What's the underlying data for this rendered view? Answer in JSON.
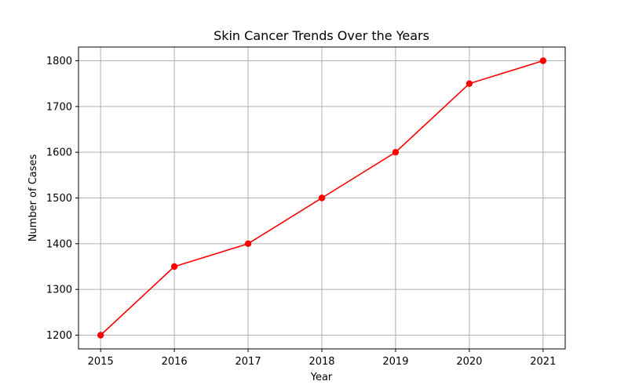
{
  "chart_data": {
    "type": "line",
    "title": "Skin Cancer Trends Over the Years",
    "xlabel": "Year",
    "ylabel": "Number of Cases",
    "x": [
      2015,
      2016,
      2017,
      2018,
      2019,
      2020,
      2021
    ],
    "series": [
      {
        "values": [
          1200,
          1350,
          1400,
          1500,
          1600,
          1750,
          1800
        ],
        "color": "#ff0000",
        "marker": "circle"
      }
    ],
    "xlim": [
      2014.7,
      2021.3
    ],
    "ylim": [
      1170,
      1830
    ],
    "x_ticks": [
      2015,
      2016,
      2017,
      2018,
      2019,
      2020,
      2021
    ],
    "y_ticks": [
      1200,
      1300,
      1400,
      1500,
      1600,
      1700,
      1800
    ],
    "grid": true,
    "legend": "none"
  }
}
